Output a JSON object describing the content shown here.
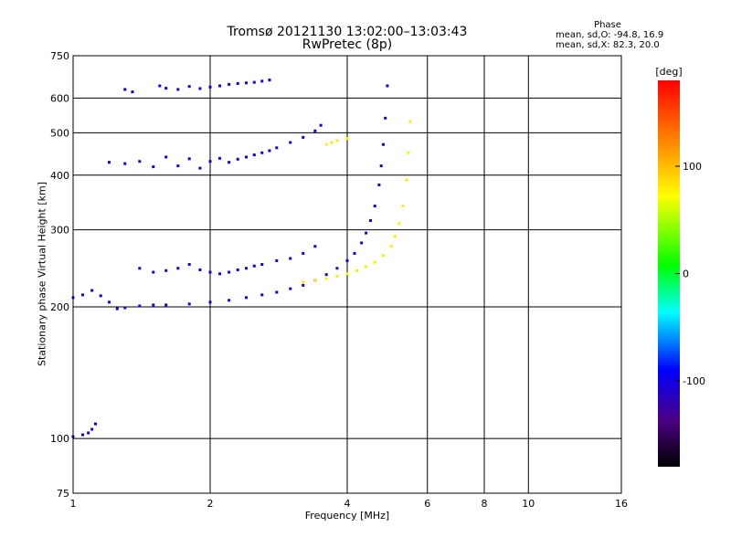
{
  "header": {
    "title": "Tromsø 20121130 13:02:00–13:03:43",
    "subtitle": "RwPretec (8p)",
    "phase_title": "Phase",
    "phase_o": "mean, sd,O:  -94.8, 16.9",
    "phase_x": "mean, sd,X:  82.3, 20.0"
  },
  "colorbar": {
    "label": "[deg]",
    "ticks": [
      "100",
      "0",
      "-100"
    ],
    "tick_values": [
      100,
      0,
      -100
    ],
    "range": [
      -180,
      180
    ]
  },
  "chart_data": {
    "type": "scatter",
    "xlabel": "Frequency [MHz]",
    "ylabel": "Stationary phase Virtual Height [km]",
    "xscale": "log",
    "yscale": "log",
    "xlim": [
      1,
      16
    ],
    "ylim": [
      75,
      750
    ],
    "xticks": [
      1,
      2,
      4,
      6,
      8,
      10,
      16
    ],
    "xtick_labels": [
      "1",
      "2",
      "4",
      "6",
      "8",
      "10",
      "16"
    ],
    "yticks": [
      75,
      100,
      200,
      300,
      400,
      500,
      600,
      750
    ],
    "ytick_labels": [
      "75",
      "100",
      "200",
      "300",
      "400",
      "500",
      "600",
      "750"
    ],
    "grid": true,
    "series": [
      {
        "mode": "O",
        "phase": -100,
        "traces": [
          {
            "x": [
              1.0,
              1.05,
              1.08,
              1.1,
              1.12
            ],
            "y": [
              101,
              102,
              103,
              105,
              108
            ]
          },
          {
            "x": [
              1.0,
              1.05,
              1.1,
              1.15,
              1.2,
              1.25,
              1.3,
              1.4,
              1.5,
              1.6,
              1.8,
              2.0,
              2.2,
              2.4,
              2.6,
              2.8,
              3.0,
              3.2,
              3.4,
              3.6,
              3.8,
              4.0,
              4.15,
              4.3,
              4.4,
              4.5,
              4.6,
              4.7,
              4.75,
              4.8,
              4.85,
              4.9
            ],
            "y": [
              210,
              213,
              218,
              212,
              205,
              198,
              199,
              201,
              202,
              202,
              203,
              205,
              207,
              210,
              213,
              216,
              220,
              224,
              230,
              237,
              245,
              255,
              265,
              280,
              295,
              315,
              340,
              380,
              420,
              470,
              540,
              640
            ]
          },
          {
            "x": [
              1.2,
              1.3,
              1.4,
              1.5,
              1.6,
              1.7,
              1.8,
              1.9,
              2.0,
              2.1,
              2.2,
              2.3,
              2.4,
              2.5,
              2.6,
              2.7,
              2.8,
              3.0,
              3.2,
              3.4,
              3.5
            ],
            "y": [
              428,
              425,
              430,
              418,
              440,
              420,
              436,
              415,
              430,
              437,
              428,
              435,
              440,
              445,
              450,
              455,
              462,
              475,
              488,
              505,
              520
            ]
          },
          {
            "x": [
              1.3,
              1.35,
              1.55,
              1.6,
              1.7,
              1.8,
              1.9,
              2.0,
              2.1,
              2.2,
              2.3,
              2.4,
              2.5,
              2.6,
              2.7
            ],
            "y": [
              628,
              620,
              640,
              632,
              628,
              638,
              631,
              636,
              640,
              645,
              648,
              650,
              652,
              656,
              660
            ]
          },
          {
            "x": [
              1.4,
              1.5,
              1.6,
              1.7,
              1.8,
              1.9,
              2.0,
              2.1,
              2.2,
              2.3,
              2.4,
              2.5,
              2.6,
              2.8,
              3.0,
              3.2,
              3.4
            ],
            "y": [
              245,
              240,
              242,
              245,
              250,
              243,
              240,
              238,
              240,
              243,
              245,
              248,
              250,
              255,
              258,
              265,
              275
            ]
          }
        ]
      },
      {
        "mode": "X",
        "phase": 80,
        "traces": [
          {
            "x": [
              3.2,
              3.4,
              3.6,
              3.8,
              4.0,
              4.2,
              4.4,
              4.6,
              4.8,
              5.0,
              5.1,
              5.2,
              5.3,
              5.4,
              5.45,
              5.5
            ],
            "y": [
              228,
              230,
              232,
              235,
              238,
              242,
              247,
              253,
              262,
              275,
              290,
              310,
              340,
              390,
              450,
              530
            ]
          },
          {
            "x": [
              3.6,
              3.7,
              3.8,
              4.0
            ],
            "y": [
              470,
              475,
              480,
              485
            ]
          }
        ]
      }
    ]
  }
}
